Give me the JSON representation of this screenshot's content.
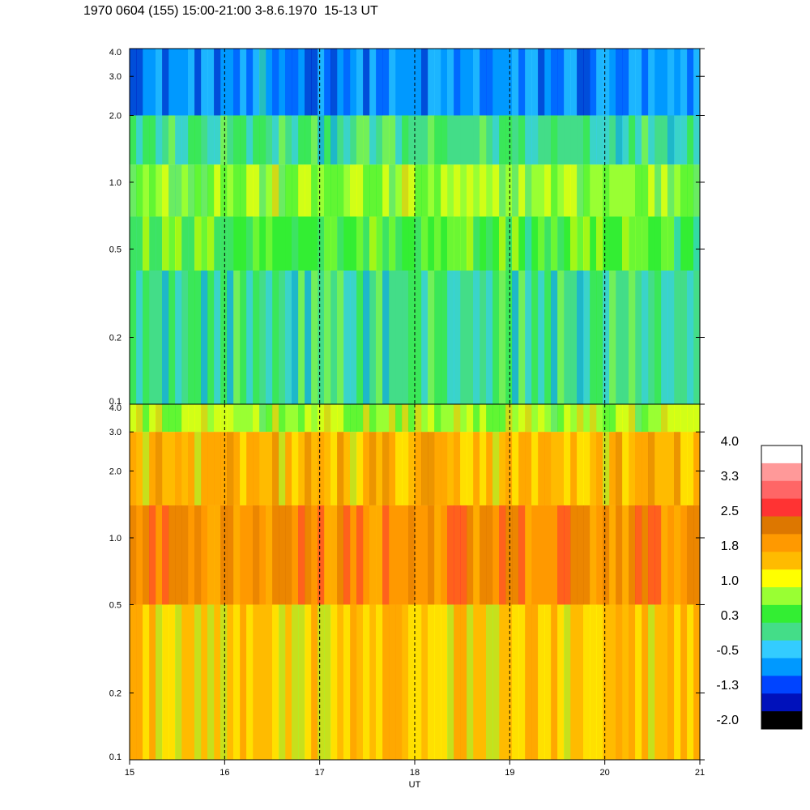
{
  "title": "1970 0604 (155) 15:00-21:00 3-8.6.1970  15-13 UT",
  "chart_data": {
    "type": "heatmap",
    "panels": [
      {
        "name": "",
        "ytick_labels": [
          "4.0",
          "3.0",
          "2.0",
          "1.0",
          "0.5",
          "0.2",
          "0.1"
        ],
        "yticks": [
          4.0,
          3.0,
          2.0,
          1.0,
          0.5,
          0.2,
          0.1
        ],
        "ylim": [
          0.1,
          4.0
        ],
        "yscale": "log",
        "bands": [
          {
            "y_range": [
              2.0,
              4.0
            ],
            "level": -0.8
          },
          {
            "y_range": [
              1.2,
              2.0
            ],
            "level": 0.1
          },
          {
            "y_range": [
              0.7,
              1.2
            ],
            "level": 0.7
          },
          {
            "y_range": [
              0.4,
              0.7
            ],
            "level": 0.5
          },
          {
            "y_range": [
              0.1,
              0.4
            ],
            "level": 0.1
          }
        ]
      },
      {
        "name": "",
        "ytick_labels": [
          "4.0",
          "3.0",
          "2.0",
          "1.0",
          "0.5",
          "0.2",
          "0.1"
        ],
        "yticks": [
          4.0,
          3.0,
          2.0,
          1.0,
          0.5,
          0.2,
          0.1
        ],
        "ylim": [
          0.1,
          4.0
        ],
        "yscale": "log",
        "bands": [
          {
            "y_range": [
              3.0,
              4.0
            ],
            "level": 0.9
          },
          {
            "y_range": [
              1.4,
              3.0
            ],
            "level": 1.6
          },
          {
            "y_range": [
              0.5,
              1.4
            ],
            "level": 2.1
          },
          {
            "y_range": [
              0.1,
              0.5
            ],
            "level": 1.4
          }
        ]
      }
    ],
    "x": {
      "label": "UT",
      "range": [
        15,
        21
      ],
      "ticks": [
        15,
        16,
        17,
        18,
        19,
        20,
        21
      ],
      "tick_labels": [
        "15",
        "16",
        "17",
        "18",
        "19",
        "20",
        "21"
      ],
      "dashed_gridlines": [
        16,
        17,
        18,
        19,
        20
      ]
    },
    "colorbar": {
      "labels": [
        "4.0",
        "3.3",
        "2.5",
        "1.8",
        "1.0",
        "0.3",
        "-0.5",
        "-1.3",
        "-2.0"
      ],
      "levels_top_to_bottom": [
        "#ffffff",
        "#ff9999",
        "#ff6666",
        "#ff3333",
        "#dd7700",
        "#ff9900",
        "#ffbb00",
        "#ffff00",
        "#99ff33",
        "#33ee33",
        "#44dd88",
        "#33ccff",
        "#0099ff",
        "#0044ff",
        "#0011bb",
        "#000000"
      ]
    }
  }
}
